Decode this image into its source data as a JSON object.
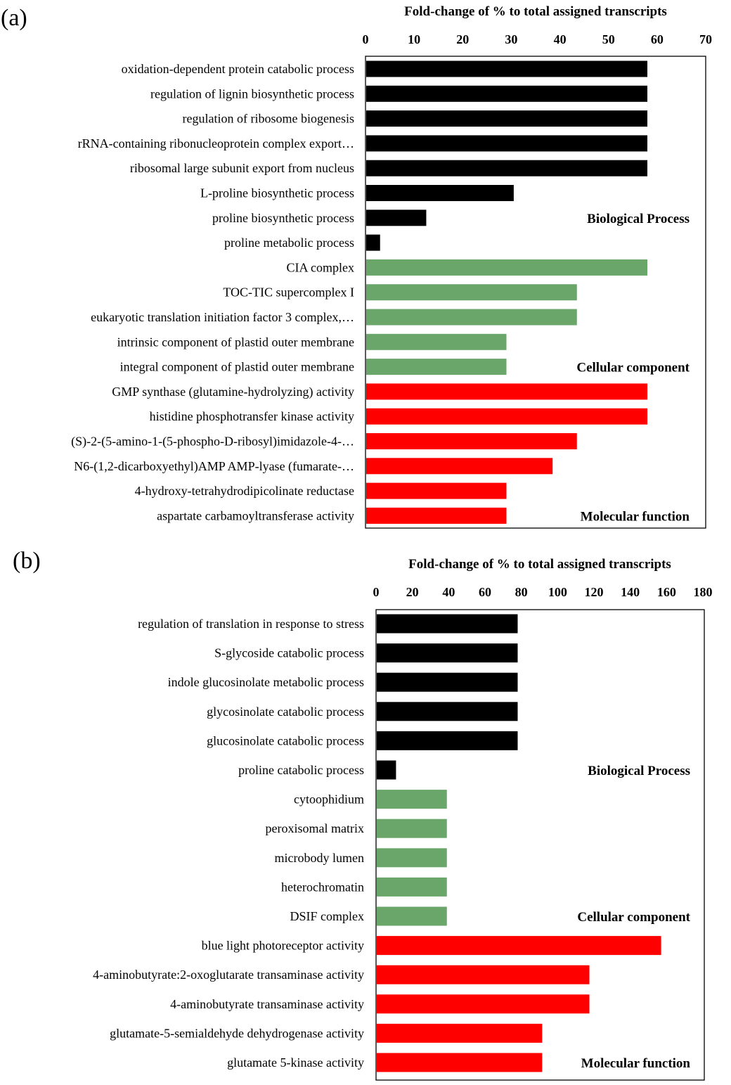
{
  "colors": {
    "biological_process": "#000000",
    "cellular_component": "#6aa66a",
    "molecular_function": "#ff0000"
  },
  "chart_data": [
    {
      "type": "bar",
      "orientation": "horizontal",
      "panel_label": "(a)",
      "xlabel": "Fold-change  of % to total  assigned transcripts",
      "xlim": [
        0,
        70
      ],
      "xticks": [
        0,
        10,
        20,
        30,
        40,
        50,
        60,
        70
      ],
      "axis_position": "top",
      "grid": false,
      "categories": [
        "oxidation-dependent protein catabolic process",
        "regulation of lignin biosynthetic process",
        "regulation of ribosome biogenesis",
        "rRNA-containing ribonucleoprotein complex export…",
        "ribosomal large subunit export from nucleus",
        "L-proline biosynthetic process",
        "proline biosynthetic process",
        "proline metabolic process",
        "CIA complex",
        "TOC-TIC supercomplex I",
        "eukaryotic translation initiation factor 3 complex,…",
        "intrinsic component of plastid outer membrane",
        "integral component of plastid outer membrane",
        "GMP synthase (glutamine-hydrolyzing) activity",
        "histidine phosphotransfer kinase activity",
        "(S)-2-(5-amino-1-(5-phospho-D-ribosyl)imidazole-4-…",
        "N6-(1,2-dicarboxyethyl)AMP AMP-lyase (fumarate-…",
        "4-hydroxy-tetrahydrodipicolinate reductase",
        "aspartate carbamoyltransferase activity"
      ],
      "values": [
        58,
        58,
        58,
        58,
        58,
        30.5,
        12.5,
        3,
        58,
        43.5,
        43.5,
        29,
        29,
        58,
        58,
        43.5,
        38.5,
        29,
        29
      ],
      "groups": [
        "biological_process",
        "biological_process",
        "biological_process",
        "biological_process",
        "biological_process",
        "biological_process",
        "biological_process",
        "biological_process",
        "cellular_component",
        "cellular_component",
        "cellular_component",
        "cellular_component",
        "cellular_component",
        "molecular_function",
        "molecular_function",
        "molecular_function",
        "molecular_function",
        "molecular_function",
        "molecular_function"
      ],
      "group_labels": [
        {
          "group": "biological_process",
          "text": "Biological Process",
          "row": 6
        },
        {
          "group": "cellular_component",
          "text": "Cellular component",
          "row": 12
        },
        {
          "group": "molecular_function",
          "text": "Molecular  function",
          "row": 18
        }
      ]
    },
    {
      "type": "bar",
      "orientation": "horizontal",
      "panel_label": "(b)",
      "xlabel": "Fold-change  of % to total  assigned transcripts",
      "xlim": [
        0,
        180
      ],
      "xticks": [
        0,
        20,
        40,
        60,
        80,
        100,
        120,
        140,
        160,
        180
      ],
      "axis_position": "top",
      "grid": false,
      "categories": [
        "regulation of translation in response to stress",
        "S-glycoside catabolic process",
        "indole glucosinolate metabolic process",
        "glycosinolate catabolic process",
        "glucosinolate catabolic process",
        "proline catabolic process",
        "cytoophidium",
        "peroxisomal matrix",
        "microbody lumen",
        "heterochromatin",
        "DSIF complex",
        "blue light photoreceptor activity",
        "4-aminobutyrate:2-oxoglutarate transaminase activity",
        "4-aminobutyrate transaminase activity",
        "glutamate-5-semialdehyde dehydrogenase activity",
        "glutamate 5-kinase activity"
      ],
      "values": [
        78,
        78,
        78,
        78,
        78,
        11,
        39,
        39,
        39,
        39,
        39,
        157,
        117.5,
        117.5,
        91.5,
        91.5
      ],
      "groups": [
        "biological_process",
        "biological_process",
        "biological_process",
        "biological_process",
        "biological_process",
        "biological_process",
        "cellular_component",
        "cellular_component",
        "cellular_component",
        "cellular_component",
        "cellular_component",
        "molecular_function",
        "molecular_function",
        "molecular_function",
        "molecular_function",
        "molecular_function"
      ],
      "group_labels": [
        {
          "group": "biological_process",
          "text": "Biological Process",
          "row": 5
        },
        {
          "group": "cellular_component",
          "text": "Cellular component",
          "row": 10
        },
        {
          "group": "molecular_function",
          "text": "Molecular  function",
          "row": 15
        }
      ]
    }
  ]
}
